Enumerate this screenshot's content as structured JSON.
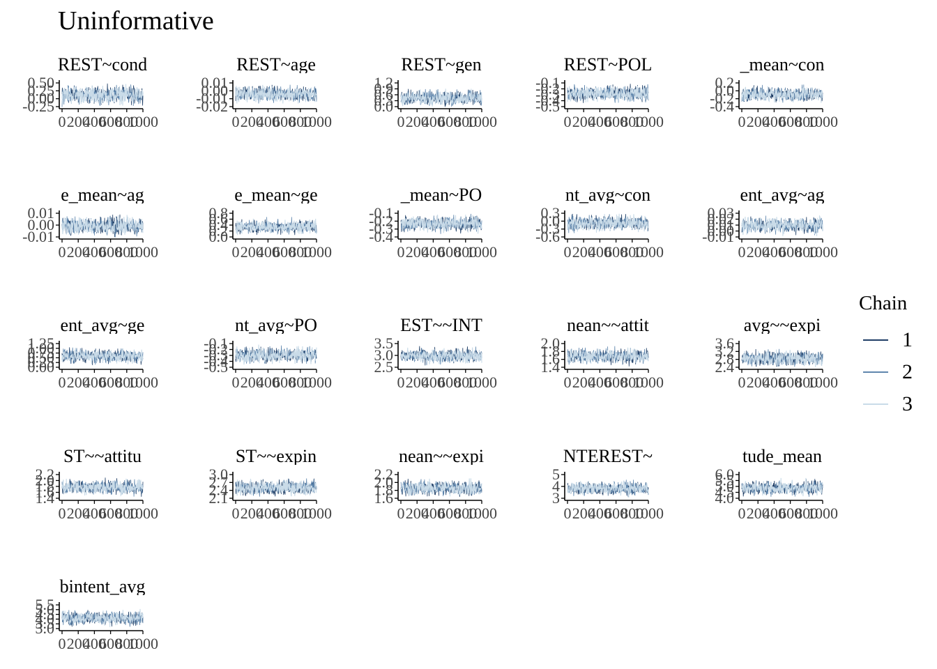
{
  "title": "Uninformative",
  "legend": {
    "title": "Chain",
    "items": [
      {
        "label": "1",
        "color": "#1f3e66"
      },
      {
        "label": "2",
        "color": "#5f86ad"
      },
      {
        "label": "3",
        "color": "#c9dbe8"
      }
    ]
  },
  "chart_data": {
    "type": "line",
    "facet_layout": "5 columns x 5 rows",
    "grid": false,
    "x_ticks": [
      "0",
      "200",
      "400",
      "600",
      "800",
      "1000"
    ],
    "xlim": [
      0,
      1000
    ],
    "series_names": [
      "1",
      "2",
      "3"
    ],
    "panels": [
      {
        "label": "REST~cond",
        "ylim": [
          -0.3,
          0.55
        ],
        "ticks": [
          "0.50",
          "0.25",
          "0.00",
          "-0.25"
        ],
        "center": 0.12,
        "spread": 0.17
      },
      {
        "label": "REST~age",
        "ylim": [
          -0.025,
          0.015
        ],
        "ticks": [
          "0.01",
          "0.00",
          "-0.01",
          "-0.02"
        ],
        "center": -0.004,
        "spread": 0.007
      },
      {
        "label": "REST~gen",
        "ylim": [
          -0.05,
          1.25
        ],
        "ticks": [
          "1.2",
          "0.9",
          "0.6",
          "0.3",
          "0.0"
        ],
        "center": 0.45,
        "spread": 0.22
      },
      {
        "label": "REST~POL",
        "ylim": [
          -0.55,
          -0.05
        ],
        "ticks": [
          "-0.1",
          "-0.2",
          "-0.3",
          "-0.4",
          "-0.5"
        ],
        "center": -0.28,
        "spread": 0.09
      },
      {
        "label": "_mean~con",
        "ylim": [
          -0.45,
          0.3
        ],
        "ticks": [
          "0.2",
          "0.0",
          "-0.2",
          "-0.4"
        ],
        "center": -0.06,
        "spread": 0.13
      },
      {
        "label": "e_mean~ag",
        "ylim": [
          -0.015,
          0.015
        ],
        "ticks": [
          "0.01",
          "0.00",
          "-0.01"
        ],
        "center": -0.001,
        "spread": 0.006
      },
      {
        "label": "e_mean~ge",
        "ylim": [
          -0.05,
          0.85
        ],
        "ticks": [
          "0.8",
          "0.6",
          "0.4",
          "0.2",
          "0.0"
        ],
        "center": 0.35,
        "spread": 0.14
      },
      {
        "label": "_mean~PO",
        "ylim": [
          -0.45,
          -0.05
        ],
        "ticks": [
          "-0.1",
          "-0.2",
          "-0.3",
          "-0.4"
        ],
        "center": -0.23,
        "spread": 0.07
      },
      {
        "label": "nt_avg~con",
        "ylim": [
          -0.65,
          0.35
        ],
        "ticks": [
          "0.3",
          "0.0",
          "-0.3",
          "-0.6"
        ],
        "center": -0.08,
        "spread": 0.18
      },
      {
        "label": "ent_avg~ag",
        "ylim": [
          -0.012,
          0.033
        ],
        "ticks": [
          "0.03",
          "0.02",
          "0.01",
          "0.00",
          "-0.01"
        ],
        "center": 0.01,
        "spread": 0.008
      },
      {
        "label": "ent_avg~ge",
        "ylim": [
          -0.05,
          1.3
        ],
        "ticks": [
          "1.25",
          "1.00",
          "0.75",
          "0.50",
          "0.25",
          "0.00"
        ],
        "center": 0.6,
        "spread": 0.22
      },
      {
        "label": "nt_avg~PO",
        "ylim": [
          -0.55,
          -0.05
        ],
        "ticks": [
          "-0.1",
          "-0.2",
          "-0.3",
          "-0.4",
          "-0.5"
        ],
        "center": -0.29,
        "spread": 0.09
      },
      {
        "label": "EST~~INT",
        "ylim": [
          2.5,
          3.85
        ],
        "ticks": [
          "3.5",
          "3.0",
          "2.5"
        ],
        "center": 3.15,
        "spread": 0.22
      },
      {
        "label": "nean~~attit",
        "ylim": [
          1.35,
          2.05
        ],
        "ticks": [
          "2.0",
          "1.8",
          "1.6",
          "1.4"
        ],
        "center": 1.68,
        "spread": 0.12
      },
      {
        "label": "avg~~expi",
        "ylim": [
          2.35,
          3.65
        ],
        "ticks": [
          "3.6",
          "3.2",
          "2.8",
          "2.4"
        ],
        "center": 2.85,
        "spread": 0.22
      },
      {
        "label": "ST~~attitu",
        "ylim": [
          1.35,
          2.3
        ],
        "ticks": [
          "2.2",
          "2.0",
          "1.8",
          "1.6",
          "1.4"
        ],
        "center": 1.8,
        "spread": 0.16
      },
      {
        "label": "ST~~expin",
        "ylim": [
          2.05,
          3.05
        ],
        "ticks": [
          "3.0",
          "2.7",
          "2.4",
          "2.1"
        ],
        "center": 2.5,
        "spread": 0.17
      },
      {
        "label": "nean~~expi",
        "ylim": [
          1.5,
          2.25
        ],
        "ticks": [
          "2.2",
          "2.0",
          "1.8",
          "1.6"
        ],
        "center": 1.83,
        "spread": 0.13
      },
      {
        "label": "NTEREST~",
        "ylim": [
          2.6,
          5.2
        ],
        "ticks": [
          "5",
          "4",
          "3"
        ],
        "center": 3.7,
        "spread": 0.4
      },
      {
        "label": "tude_mean",
        "ylim": [
          3.95,
          6.1
        ],
        "ticks": [
          "6.0",
          "5.5",
          "5.0",
          "4.5",
          "4.0"
        ],
        "center": 4.9,
        "spread": 0.35
      },
      {
        "label": "bintent_avg",
        "ylim": [
          2.9,
          5.55
        ],
        "ticks": [
          "5.5",
          "5.0",
          "4.5",
          "4.0",
          "3.5",
          "3.0"
        ],
        "center": 4.1,
        "spread": 0.42
      }
    ]
  }
}
